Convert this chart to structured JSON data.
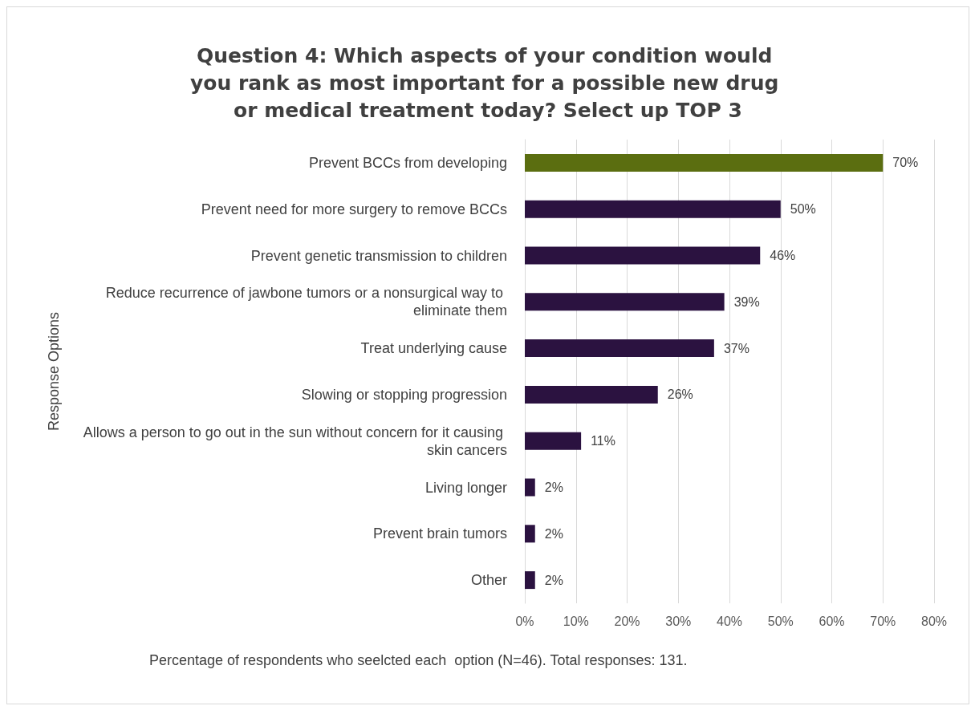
{
  "chart_data": {
    "type": "bar",
    "orientation": "horizontal",
    "title": "Question 4: Which aspects of your condition would you rank as most important for a possible new drug or medical treatment today? Select up TOP 3",
    "categories": [
      "Prevent BCCs from developing",
      "Prevent need for more surgery to remove BCCs",
      "Prevent genetic transmission to children",
      "Reduce recurrence of jawbone tumors or a nonsurgical way to eliminate them",
      "Treat underlying cause",
      "Slowing or stopping progression",
      "Allows a person to go out in the sun without concern for it causing skin cancers",
      "Living longer",
      "Prevent brain tumors",
      "Other"
    ],
    "values": [
      70,
      50,
      46,
      39,
      37,
      26,
      11,
      2,
      2,
      2
    ],
    "value_labels": [
      "70%",
      "50%",
      "46%",
      "39%",
      "37%",
      "26%",
      "11%",
      "2%",
      "2%",
      "2%"
    ],
    "colors": [
      "#5b6e10",
      "#2b1240",
      "#2b1240",
      "#2b1240",
      "#2b1240",
      "#2b1240",
      "#2b1240",
      "#2b1240",
      "#2b1240",
      "#2b1240"
    ],
    "xlim": [
      0,
      80
    ],
    "xticks": [
      {
        "value": 0,
        "label": "0%"
      },
      {
        "value": 10,
        "label": "10%"
      },
      {
        "value": 20,
        "label": "20%"
      },
      {
        "value": 30,
        "label": "30%"
      },
      {
        "value": 40,
        "label": "40%"
      },
      {
        "value": 50,
        "label": "50%"
      },
      {
        "value": 60,
        "label": "60%"
      },
      {
        "value": 70,
        "label": "70%"
      },
      {
        "value": 80,
        "label": "80%"
      }
    ],
    "xlabel": "Percentage of respondents who seelcted each  option (N=46). Total responses: 131.",
    "ylabel": "Response Options",
    "grid": "x"
  }
}
